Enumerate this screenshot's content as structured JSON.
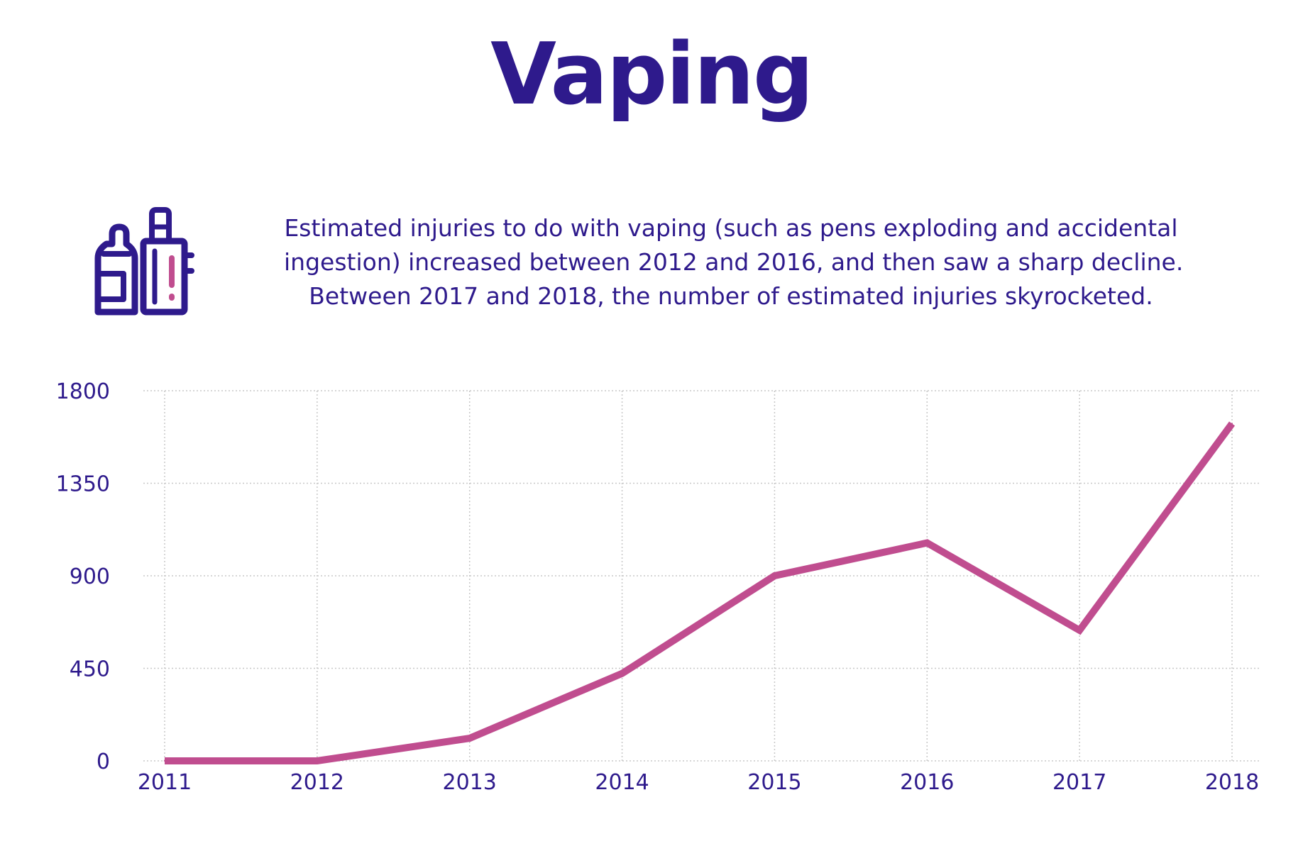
{
  "colors": {
    "text": "#2e1a8c",
    "line": "#c04d8f",
    "grid": "#c8c8c8",
    "icon_primary": "#2e1a8c",
    "icon_accent": "#c04d8f"
  },
  "header": {
    "title": "Vaping"
  },
  "icon": {
    "name": "vape-bottle-icon"
  },
  "description": {
    "lines": [
      "Estimated injuries to do with vaping (such as pens exploding and accidental",
      "ingestion) increased between 2012 and 2016, and then saw a sharp decline.",
      "Between 2017 and 2018, the number of estimated injuries skyrocketed."
    ]
  },
  "chart_data": {
    "type": "line",
    "title": "",
    "xlabel": "",
    "ylabel": "",
    "x": [
      "2011",
      "2012",
      "2013",
      "2014",
      "2015",
      "2016",
      "2017",
      "2018"
    ],
    "series": [
      {
        "values": [
          0,
          0,
          110,
          425,
          900,
          1060,
          635,
          1640
        ]
      }
    ],
    "ylim": [
      0,
      1800
    ],
    "yticks": [
      "0",
      "450",
      "900",
      "1350",
      "1800"
    ],
    "grid": true,
    "legend": "none"
  }
}
